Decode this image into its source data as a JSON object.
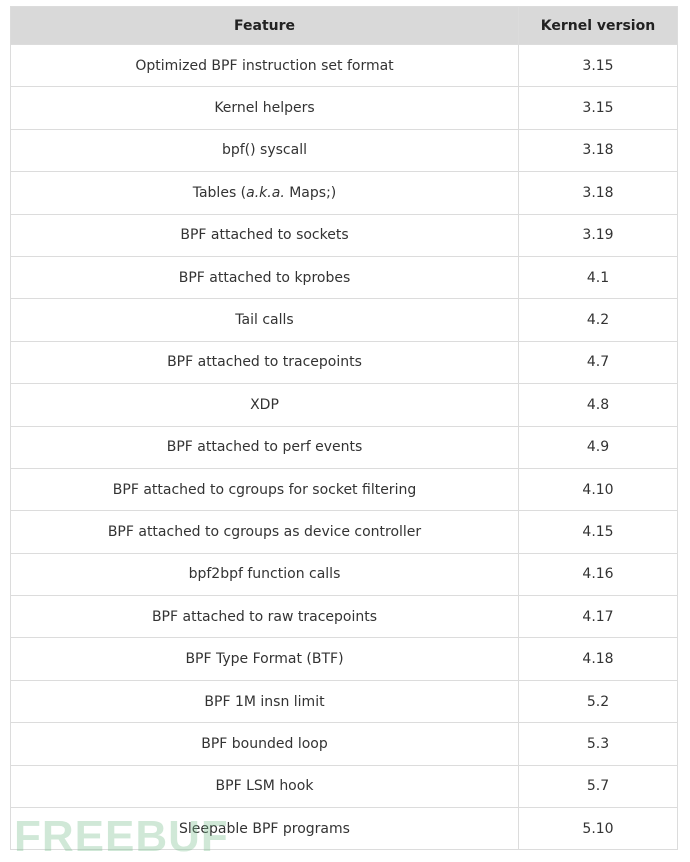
{
  "table": {
    "headers": [
      "Feature",
      "Kernel version"
    ],
    "rows": [
      {
        "feature": "Optimized BPF instruction set format",
        "version": "3.15"
      },
      {
        "feature": "Kernel helpers",
        "version": "3.15"
      },
      {
        "feature": "bpf() syscall",
        "version": "3.18"
      },
      {
        "feature_pre": "Tables (",
        "feature_em": "a.k.a.",
        "feature_post": " Maps;)",
        "version": "3.18"
      },
      {
        "feature": "BPF attached to sockets",
        "version": "3.19"
      },
      {
        "feature": "BPF attached to kprobes",
        "version": "4.1"
      },
      {
        "feature": "Tail calls",
        "version": "4.2"
      },
      {
        "feature": "BPF attached to tracepoints",
        "version": "4.7"
      },
      {
        "feature": "XDP",
        "version": "4.8"
      },
      {
        "feature": "BPF attached to perf events",
        "version": "4.9"
      },
      {
        "feature": "BPF attached to cgroups for socket filtering",
        "version": "4.10"
      },
      {
        "feature": "BPF attached to cgroups as device controller",
        "version": "4.15"
      },
      {
        "feature": "bpf2bpf function calls",
        "version": "4.16"
      },
      {
        "feature": "BPF attached to raw tracepoints",
        "version": "4.17"
      },
      {
        "feature": "BPF Type Format (BTF)",
        "version": "4.18"
      },
      {
        "feature": "BPF 1M insn limit",
        "version": "5.2"
      },
      {
        "feature": "BPF bounded loop",
        "version": "5.3"
      },
      {
        "feature": "BPF LSM hook",
        "version": "5.7"
      },
      {
        "feature": "Sleepable BPF programs",
        "version": "5.10"
      }
    ]
  },
  "watermark": "FREEBUF"
}
